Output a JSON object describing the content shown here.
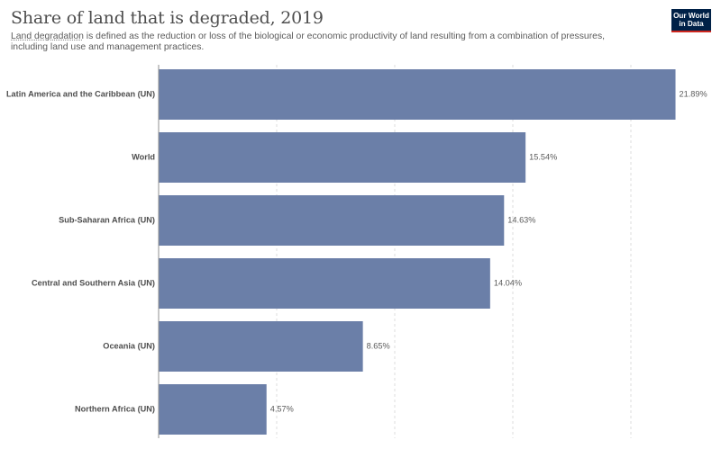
{
  "header": {
    "title": "Share of land that is degraded, 2019",
    "subtitle_term": "Land degradation",
    "subtitle_rest": " is defined as the reduction or loss of the biological or economic productivity of land resulting from a combination of pressures, including land use and management practices.",
    "logo_line1": "Our World",
    "logo_line2": "in Data"
  },
  "colors": {
    "bar": "#6b7fa8",
    "grid": "#dddddd",
    "axis": "#8f8f8f"
  },
  "chart_data": {
    "type": "bar",
    "orientation": "horizontal",
    "title": "Share of land that is degraded, 2019",
    "categories": [
      "Latin America and the Caribbean (UN)",
      "World",
      "Sub-Saharan Africa (UN)",
      "Central and Southern Asia (UN)",
      "Oceania (UN)",
      "Northern Africa (UN)"
    ],
    "values": [
      21.89,
      15.54,
      14.63,
      14.04,
      8.65,
      4.57
    ],
    "value_labels": [
      "21.89%",
      "15.54%",
      "14.63%",
      "14.04%",
      "8.65%",
      "4.57%"
    ],
    "unit": "%",
    "xlim": [
      0,
      22
    ],
    "gridlines": [
      5,
      10,
      15,
      20
    ],
    "grid": true
  }
}
